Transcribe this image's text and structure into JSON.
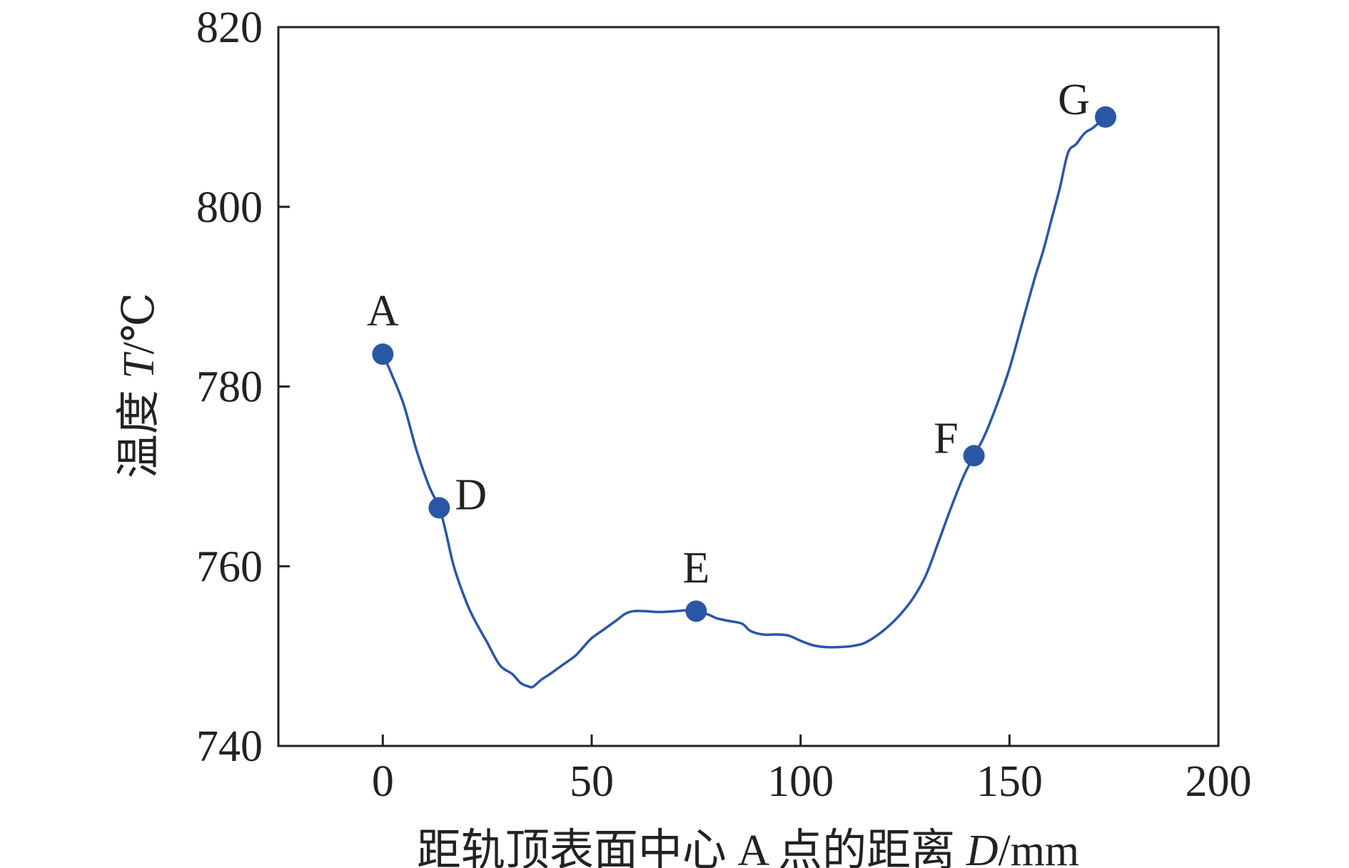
{
  "chart_data": {
    "type": "line",
    "xlabel_parts": [
      "距轨顶表面中心 A 点的距离 ",
      "D",
      "/mm"
    ],
    "ylabel_parts": [
      "温度 ",
      "T",
      "/℃"
    ],
    "xlim": [
      -25,
      200
    ],
    "ylim": [
      740,
      820
    ],
    "xticks": [
      0,
      50,
      100,
      150,
      200
    ],
    "yticks": [
      740,
      760,
      780,
      800,
      820
    ],
    "grid": false,
    "legend": "none",
    "line_color": "#2a56a6",
    "marker_color": "#2a56a6",
    "series": [
      {
        "x": [
          0,
          2,
          5,
          8,
          11,
          13.5,
          15,
          17,
          20,
          22,
          25,
          28,
          31,
          33,
          35,
          36,
          38,
          40,
          43,
          46,
          48,
          50,
          53,
          56,
          58,
          60,
          63,
          66,
          70,
          73,
          75,
          78,
          80,
          83,
          86,
          88,
          91,
          94,
          97,
          100,
          103,
          106,
          109,
          112,
          115,
          118,
          121,
          124,
          127,
          130,
          133,
          136,
          139,
          141.5,
          144,
          147,
          150,
          153,
          156,
          158,
          160,
          162,
          164,
          166,
          168,
          170,
          173
        ],
        "y": [
          783.6,
          781.5,
          778,
          773,
          769,
          766.5,
          764,
          760,
          756,
          754,
          751.5,
          749,
          748,
          747,
          746.6,
          746.6,
          747.4,
          748,
          749,
          750,
          751,
          752,
          753,
          754,
          754.7,
          755,
          755,
          754.9,
          755,
          755.1,
          755,
          754.6,
          754.2,
          753.9,
          753.6,
          752.8,
          752.4,
          752.4,
          752.3,
          751.7,
          751.2,
          751,
          751,
          751.1,
          751.4,
          752.2,
          753.3,
          754.7,
          756.5,
          759,
          762.7,
          766.5,
          770,
          772.3,
          774.5,
          778,
          782,
          787,
          792,
          795,
          798.5,
          802,
          806,
          807,
          808.2,
          808.8,
          810
        ]
      }
    ],
    "points": [
      {
        "label": "A",
        "x": 0,
        "y": 783.6,
        "pos": "above"
      },
      {
        "label": "D",
        "x": 13.5,
        "y": 766.5,
        "pos": "right"
      },
      {
        "label": "E",
        "x": 75,
        "y": 755,
        "pos": "above"
      },
      {
        "label": "F",
        "x": 141.5,
        "y": 772.3,
        "pos": "left"
      },
      {
        "label": "G",
        "x": 173,
        "y": 810,
        "pos": "left"
      }
    ]
  }
}
